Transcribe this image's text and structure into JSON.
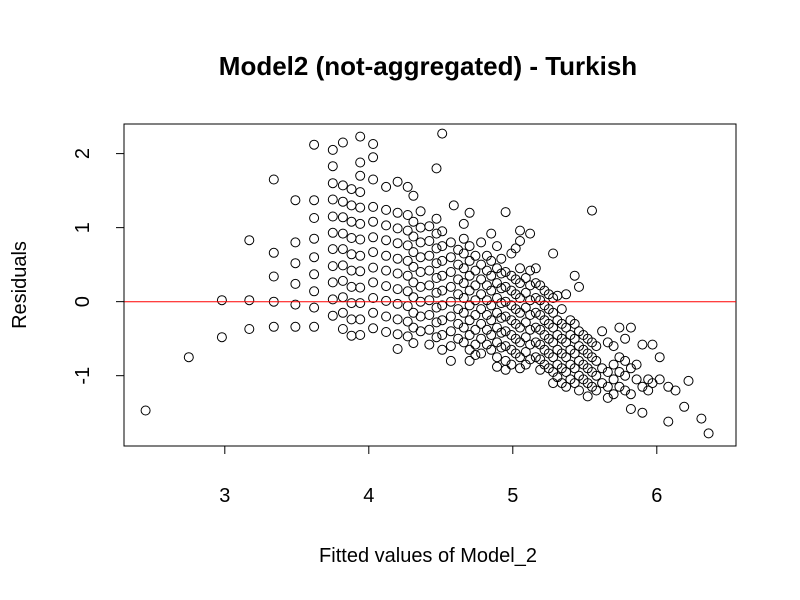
{
  "chart_data": {
    "type": "scatter",
    "title": "Model2 (not-aggregated) - Turkish",
    "xlabel": "Fitted values of Model_2",
    "ylabel": "Residuals",
    "xlim": [
      2.3,
      6.55
    ],
    "ylim": [
      -1.95,
      2.4
    ],
    "xticks": [
      3,
      4,
      5,
      6
    ],
    "yticks": [
      -1,
      0,
      1,
      2
    ],
    "grid": false,
    "reference_line": {
      "y": 0,
      "color": "#ff0000"
    },
    "marker": "open-circle",
    "points": [
      [
        2.45,
        -1.47
      ],
      [
        2.75,
        -0.75
      ],
      [
        2.98,
        0.02
      ],
      [
        2.98,
        -0.48
      ],
      [
        3.17,
        0.83
      ],
      [
        3.17,
        0.02
      ],
      [
        3.17,
        -0.37
      ],
      [
        3.34,
        1.65
      ],
      [
        3.34,
        0.66
      ],
      [
        3.34,
        0.34
      ],
      [
        3.34,
        0.0
      ],
      [
        3.34,
        -0.34
      ],
      [
        3.49,
        1.37
      ],
      [
        3.49,
        0.8
      ],
      [
        3.49,
        0.52
      ],
      [
        3.49,
        0.24
      ],
      [
        3.49,
        -0.04
      ],
      [
        3.49,
        -0.34
      ],
      [
        3.62,
        2.12
      ],
      [
        3.62,
        1.37
      ],
      [
        3.62,
        1.13
      ],
      [
        3.62,
        0.85
      ],
      [
        3.62,
        0.6
      ],
      [
        3.62,
        0.37
      ],
      [
        3.62,
        0.14
      ],
      [
        3.62,
        -0.08
      ],
      [
        3.62,
        -0.34
      ],
      [
        3.75,
        2.05
      ],
      [
        3.75,
        1.83
      ],
      [
        3.75,
        1.6
      ],
      [
        3.75,
        1.38
      ],
      [
        3.75,
        1.15
      ],
      [
        3.75,
        0.93
      ],
      [
        3.75,
        0.71
      ],
      [
        3.75,
        0.48
      ],
      [
        3.75,
        0.26
      ],
      [
        3.75,
        0.03
      ],
      [
        3.75,
        -0.19
      ],
      [
        3.82,
        2.15
      ],
      [
        3.82,
        1.57
      ],
      [
        3.82,
        1.35
      ],
      [
        3.82,
        1.14
      ],
      [
        3.82,
        0.92
      ],
      [
        3.82,
        0.71
      ],
      [
        3.82,
        0.49
      ],
      [
        3.82,
        0.28
      ],
      [
        3.82,
        0.06
      ],
      [
        3.82,
        -0.15
      ],
      [
        3.82,
        -0.37
      ],
      [
        3.88,
        1.52
      ],
      [
        3.88,
        1.3
      ],
      [
        3.88,
        1.08
      ],
      [
        3.88,
        0.86
      ],
      [
        3.88,
        0.64
      ],
      [
        3.88,
        0.42
      ],
      [
        3.88,
        0.2
      ],
      [
        3.88,
        -0.02
      ],
      [
        3.88,
        -0.24
      ],
      [
        3.88,
        -0.46
      ],
      [
        3.94,
        2.23
      ],
      [
        3.94,
        1.88
      ],
      [
        3.94,
        1.7
      ],
      [
        3.94,
        1.48
      ],
      [
        3.94,
        1.27
      ],
      [
        3.94,
        1.05
      ],
      [
        3.94,
        0.84
      ],
      [
        3.94,
        0.62
      ],
      [
        3.94,
        0.41
      ],
      [
        3.94,
        0.19
      ],
      [
        3.94,
        -0.02
      ],
      [
        3.94,
        -0.24
      ],
      [
        3.94,
        -0.45
      ],
      [
        4.03,
        2.13
      ],
      [
        4.03,
        1.95
      ],
      [
        4.03,
        1.65
      ],
      [
        4.03,
        1.28
      ],
      [
        4.03,
        1.08
      ],
      [
        4.03,
        0.87
      ],
      [
        4.03,
        0.67
      ],
      [
        4.03,
        0.46
      ],
      [
        4.03,
        0.26
      ],
      [
        4.03,
        0.05
      ],
      [
        4.03,
        -0.15
      ],
      [
        4.03,
        -0.36
      ],
      [
        4.12,
        1.55
      ],
      [
        4.12,
        1.24
      ],
      [
        4.12,
        1.03
      ],
      [
        4.12,
        0.83
      ],
      [
        4.12,
        0.62
      ],
      [
        4.12,
        0.42
      ],
      [
        4.12,
        0.21
      ],
      [
        4.12,
        0.01
      ],
      [
        4.12,
        -0.2
      ],
      [
        4.12,
        -0.41
      ],
      [
        4.2,
        1.62
      ],
      [
        4.2,
        1.2
      ],
      [
        4.2,
        0.99
      ],
      [
        4.2,
        0.79
      ],
      [
        4.2,
        0.58
      ],
      [
        4.2,
        0.38
      ],
      [
        4.2,
        0.17
      ],
      [
        4.2,
        -0.03
      ],
      [
        4.2,
        -0.24
      ],
      [
        4.2,
        -0.44
      ],
      [
        4.2,
        -0.64
      ],
      [
        4.27,
        1.55
      ],
      [
        4.27,
        1.17
      ],
      [
        4.27,
        0.96
      ],
      [
        4.27,
        0.76
      ],
      [
        4.27,
        0.55
      ],
      [
        4.27,
        0.35
      ],
      [
        4.27,
        0.14
      ],
      [
        4.27,
        -0.06
      ],
      [
        4.27,
        -0.27
      ],
      [
        4.27,
        -0.47
      ],
      [
        4.31,
        1.43
      ],
      [
        4.31,
        1.08
      ],
      [
        4.31,
        0.88
      ],
      [
        4.31,
        0.67
      ],
      [
        4.31,
        0.47
      ],
      [
        4.31,
        0.26
      ],
      [
        4.31,
        0.06
      ],
      [
        4.31,
        -0.15
      ],
      [
        4.31,
        -0.35
      ],
      [
        4.31,
        -0.56
      ],
      [
        4.36,
        1.22
      ],
      [
        4.36,
        1.0
      ],
      [
        4.36,
        0.8
      ],
      [
        4.36,
        0.6
      ],
      [
        4.36,
        0.4
      ],
      [
        4.36,
        0.2
      ],
      [
        4.36,
        0.0
      ],
      [
        4.36,
        -0.2
      ],
      [
        4.36,
        -0.4
      ],
      [
        4.42,
        1.02
      ],
      [
        4.42,
        0.82
      ],
      [
        4.42,
        0.62
      ],
      [
        4.42,
        0.42
      ],
      [
        4.42,
        0.22
      ],
      [
        4.42,
        0.02
      ],
      [
        4.42,
        -0.18
      ],
      [
        4.42,
        -0.38
      ],
      [
        4.42,
        -0.58
      ],
      [
        4.47,
        1.8
      ],
      [
        4.47,
        1.12
      ],
      [
        4.47,
        0.92
      ],
      [
        4.47,
        0.72
      ],
      [
        4.47,
        0.52
      ],
      [
        4.47,
        0.32
      ],
      [
        4.47,
        0.12
      ],
      [
        4.47,
        -0.08
      ],
      [
        4.47,
        -0.28
      ],
      [
        4.47,
        -0.48
      ],
      [
        4.51,
        2.27
      ],
      [
        4.51,
        0.95
      ],
      [
        4.51,
        0.75
      ],
      [
        4.51,
        0.55
      ],
      [
        4.51,
        0.35
      ],
      [
        4.51,
        0.15
      ],
      [
        4.51,
        -0.05
      ],
      [
        4.51,
        -0.25
      ],
      [
        4.51,
        -0.45
      ],
      [
        4.51,
        -0.65
      ],
      [
        4.57,
        0.8
      ],
      [
        4.57,
        0.6
      ],
      [
        4.57,
        0.4
      ],
      [
        4.57,
        0.2
      ],
      [
        4.57,
        0.0
      ],
      [
        4.57,
        -0.2
      ],
      [
        4.57,
        -0.4
      ],
      [
        4.57,
        -0.6
      ],
      [
        4.57,
        -0.8
      ],
      [
        4.59,
        1.3
      ],
      [
        4.62,
        0.7
      ],
      [
        4.62,
        0.5
      ],
      [
        4.62,
        0.3
      ],
      [
        4.62,
        0.1
      ],
      [
        4.62,
        -0.1
      ],
      [
        4.62,
        -0.3
      ],
      [
        4.62,
        -0.5
      ],
      [
        4.66,
        1.05
      ],
      [
        4.66,
        0.85
      ],
      [
        4.66,
        0.65
      ],
      [
        4.66,
        0.45
      ],
      [
        4.66,
        0.25
      ],
      [
        4.66,
        0.05
      ],
      [
        4.66,
        -0.15
      ],
      [
        4.66,
        -0.35
      ],
      [
        4.66,
        -0.55
      ],
      [
        4.7,
        1.2
      ],
      [
        4.7,
        0.75
      ],
      [
        4.7,
        0.55
      ],
      [
        4.7,
        0.35
      ],
      [
        4.7,
        0.15
      ],
      [
        4.7,
        -0.05
      ],
      [
        4.7,
        -0.25
      ],
      [
        4.7,
        -0.45
      ],
      [
        4.7,
        -0.65
      ],
      [
        4.7,
        -0.8
      ],
      [
        4.74,
        0.62
      ],
      [
        4.74,
        0.42
      ],
      [
        4.74,
        0.22
      ],
      [
        4.74,
        0.02
      ],
      [
        4.74,
        -0.18
      ],
      [
        4.74,
        -0.38
      ],
      [
        4.74,
        -0.58
      ],
      [
        4.74,
        -0.72
      ],
      [
        4.78,
        0.8
      ],
      [
        4.78,
        0.5
      ],
      [
        4.78,
        0.3
      ],
      [
        4.78,
        0.1
      ],
      [
        4.78,
        -0.1
      ],
      [
        4.78,
        -0.3
      ],
      [
        4.78,
        -0.5
      ],
      [
        4.78,
        -0.7
      ],
      [
        4.82,
        0.62
      ],
      [
        4.82,
        0.42
      ],
      [
        4.82,
        0.22
      ],
      [
        4.82,
        0.02
      ],
      [
        4.82,
        -0.18
      ],
      [
        4.82,
        -0.38
      ],
      [
        4.82,
        -0.58
      ],
      [
        4.85,
        0.92
      ],
      [
        4.85,
        0.55
      ],
      [
        4.85,
        0.35
      ],
      [
        4.85,
        0.15
      ],
      [
        4.85,
        -0.05
      ],
      [
        4.85,
        -0.25
      ],
      [
        4.85,
        -0.45
      ],
      [
        4.85,
        -0.65
      ],
      [
        4.89,
        0.75
      ],
      [
        4.89,
        0.45
      ],
      [
        4.89,
        0.25
      ],
      [
        4.89,
        0.05
      ],
      [
        4.89,
        -0.15
      ],
      [
        4.89,
        -0.35
      ],
      [
        4.89,
        -0.55
      ],
      [
        4.89,
        -0.75
      ],
      [
        4.89,
        -0.88
      ],
      [
        4.92,
        0.58
      ],
      [
        4.92,
        0.38
      ],
      [
        4.92,
        0.18
      ],
      [
        4.92,
        -0.02
      ],
      [
        4.92,
        -0.22
      ],
      [
        4.92,
        -0.42
      ],
      [
        4.92,
        -0.62
      ],
      [
        4.95,
        1.21
      ],
      [
        4.95,
        0.4
      ],
      [
        4.95,
        0.2
      ],
      [
        4.95,
        0.0
      ],
      [
        4.95,
        -0.2
      ],
      [
        4.95,
        -0.4
      ],
      [
        4.95,
        -0.6
      ],
      [
        4.95,
        -0.8
      ],
      [
        4.95,
        -0.92
      ],
      [
        4.99,
        0.65
      ],
      [
        4.99,
        0.35
      ],
      [
        4.99,
        0.15
      ],
      [
        4.99,
        -0.05
      ],
      [
        4.99,
        -0.25
      ],
      [
        4.99,
        -0.45
      ],
      [
        4.99,
        -0.65
      ],
      [
        4.99,
        -0.85
      ],
      [
        5.02,
        0.72
      ],
      [
        5.02,
        0.3
      ],
      [
        5.02,
        0.1
      ],
      [
        5.02,
        -0.1
      ],
      [
        5.02,
        -0.3
      ],
      [
        5.02,
        -0.5
      ],
      [
        5.02,
        -0.7
      ],
      [
        5.05,
        0.96
      ],
      [
        5.05,
        0.82
      ],
      [
        5.05,
        0.45
      ],
      [
        5.05,
        0.25
      ],
      [
        5.05,
        0.05
      ],
      [
        5.05,
        -0.15
      ],
      [
        5.05,
        -0.35
      ],
      [
        5.05,
        -0.55
      ],
      [
        5.05,
        -0.75
      ],
      [
        5.05,
        -0.9
      ],
      [
        5.09,
        0.32
      ],
      [
        5.09,
        0.12
      ],
      [
        5.09,
        -0.08
      ],
      [
        5.09,
        -0.28
      ],
      [
        5.09,
        -0.48
      ],
      [
        5.09,
        -0.68
      ],
      [
        5.09,
        -0.85
      ],
      [
        5.12,
        0.92
      ],
      [
        5.12,
        0.42
      ],
      [
        5.12,
        0.22
      ],
      [
        5.12,
        0.02
      ],
      [
        5.12,
        -0.18
      ],
      [
        5.12,
        -0.38
      ],
      [
        5.12,
        -0.58
      ],
      [
        5.12,
        -0.78
      ],
      [
        5.16,
        0.45
      ],
      [
        5.16,
        0.25
      ],
      [
        5.16,
        0.05
      ],
      [
        5.16,
        -0.15
      ],
      [
        5.16,
        -0.35
      ],
      [
        5.16,
        -0.55
      ],
      [
        5.16,
        -0.75
      ],
      [
        5.19,
        0.22
      ],
      [
        5.19,
        0.02
      ],
      [
        5.19,
        -0.18
      ],
      [
        5.19,
        -0.38
      ],
      [
        5.19,
        -0.58
      ],
      [
        5.19,
        -0.78
      ],
      [
        5.19,
        -0.92
      ],
      [
        5.22,
        0.15
      ],
      [
        5.22,
        -0.05
      ],
      [
        5.22,
        -0.25
      ],
      [
        5.22,
        -0.45
      ],
      [
        5.22,
        -0.65
      ],
      [
        5.22,
        -0.85
      ],
      [
        5.25,
        0.1
      ],
      [
        5.25,
        -0.1
      ],
      [
        5.25,
        -0.3
      ],
      [
        5.25,
        -0.5
      ],
      [
        5.25,
        -0.7
      ],
      [
        5.25,
        -0.9
      ],
      [
        5.28,
        0.65
      ],
      [
        5.28,
        0.05
      ],
      [
        5.28,
        -0.15
      ],
      [
        5.28,
        -0.35
      ],
      [
        5.28,
        -0.55
      ],
      [
        5.28,
        -0.75
      ],
      [
        5.28,
        -0.95
      ],
      [
        5.28,
        -1.1
      ],
      [
        5.31,
        0.08
      ],
      [
        5.31,
        -0.25
      ],
      [
        5.31,
        -0.45
      ],
      [
        5.31,
        -0.65
      ],
      [
        5.31,
        -0.85
      ],
      [
        5.31,
        -1.02
      ],
      [
        5.34,
        -0.1
      ],
      [
        5.34,
        -0.3
      ],
      [
        5.34,
        -0.5
      ],
      [
        5.34,
        -0.7
      ],
      [
        5.34,
        -0.9
      ],
      [
        5.34,
        -1.1
      ],
      [
        5.37,
        0.1
      ],
      [
        5.37,
        -0.35
      ],
      [
        5.37,
        -0.55
      ],
      [
        5.37,
        -0.75
      ],
      [
        5.37,
        -0.95
      ],
      [
        5.37,
        -1.15
      ],
      [
        5.4,
        -0.25
      ],
      [
        5.4,
        -0.45
      ],
      [
        5.4,
        -0.65
      ],
      [
        5.4,
        -0.85
      ],
      [
        5.4,
        -1.05
      ],
      [
        5.43,
        0.35
      ],
      [
        5.43,
        -0.3
      ],
      [
        5.43,
        -0.5
      ],
      [
        5.43,
        -0.7
      ],
      [
        5.43,
        -0.9
      ],
      [
        5.43,
        -1.1
      ],
      [
        5.46,
        0.2
      ],
      [
        5.46,
        -0.4
      ],
      [
        5.46,
        -0.6
      ],
      [
        5.46,
        -0.8
      ],
      [
        5.46,
        -1.0
      ],
      [
        5.46,
        -1.2
      ],
      [
        5.49,
        -0.45
      ],
      [
        5.49,
        -0.65
      ],
      [
        5.49,
        -0.85
      ],
      [
        5.49,
        -1.05
      ],
      [
        5.52,
        -0.5
      ],
      [
        5.52,
        -0.7
      ],
      [
        5.52,
        -0.9
      ],
      [
        5.52,
        -1.1
      ],
      [
        5.52,
        -1.28
      ],
      [
        5.55,
        1.23
      ],
      [
        5.55,
        -0.55
      ],
      [
        5.55,
        -0.75
      ],
      [
        5.55,
        -0.95
      ],
      [
        5.55,
        -1.15
      ],
      [
        5.58,
        -0.6
      ],
      [
        5.58,
        -0.8
      ],
      [
        5.58,
        -1.0
      ],
      [
        5.58,
        -1.2
      ],
      [
        5.62,
        -0.4
      ],
      [
        5.62,
        -0.9
      ],
      [
        5.62,
        -1.1
      ],
      [
        5.66,
        -0.55
      ],
      [
        5.66,
        -0.95
      ],
      [
        5.66,
        -1.15
      ],
      [
        5.66,
        -1.3
      ],
      [
        5.7,
        -0.6
      ],
      [
        5.7,
        -0.85
      ],
      [
        5.7,
        -1.05
      ],
      [
        5.7,
        -1.25
      ],
      [
        5.74,
        -0.35
      ],
      [
        5.74,
        -0.75
      ],
      [
        5.74,
        -0.95
      ],
      [
        5.74,
        -1.15
      ],
      [
        5.78,
        -0.5
      ],
      [
        5.78,
        -0.8
      ],
      [
        5.78,
        -1.0
      ],
      [
        5.78,
        -1.2
      ],
      [
        5.82,
        -0.35
      ],
      [
        5.82,
        -0.9
      ],
      [
        5.82,
        -1.25
      ],
      [
        5.82,
        -1.45
      ],
      [
        5.86,
        -0.85
      ],
      [
        5.86,
        -1.05
      ],
      [
        5.9,
        -0.58
      ],
      [
        5.9,
        -1.15
      ],
      [
        5.9,
        -1.5
      ],
      [
        5.94,
        -1.05
      ],
      [
        5.94,
        -1.2
      ],
      [
        5.97,
        -0.58
      ],
      [
        5.97,
        -1.1
      ],
      [
        6.02,
        -0.75
      ],
      [
        6.02,
        -1.05
      ],
      [
        6.08,
        -1.62
      ],
      [
        6.08,
        -1.15
      ],
      [
        6.13,
        -1.2
      ],
      [
        6.19,
        -1.42
      ],
      [
        6.22,
        -1.07
      ],
      [
        6.31,
        -1.58
      ],
      [
        6.36,
        -1.78
      ]
    ]
  }
}
